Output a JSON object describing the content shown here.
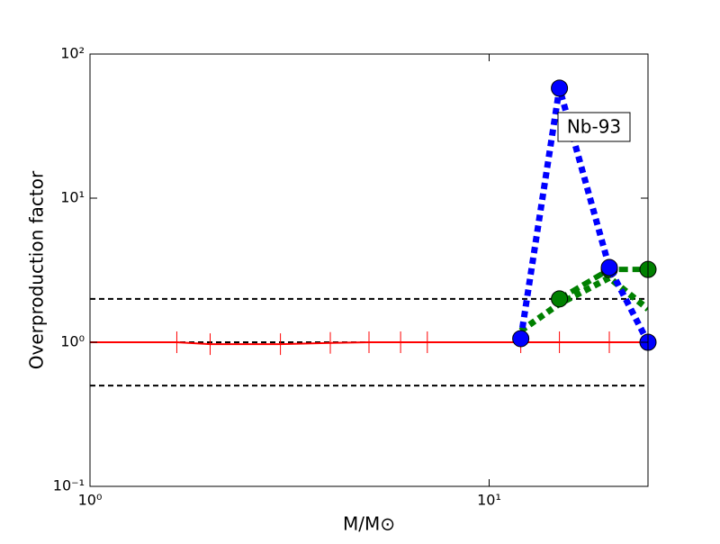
{
  "chart_data": {
    "type": "line",
    "xlabel": "M/M⊙",
    "ylabel": "Overproduction factor",
    "annotation": "Nb-93",
    "xscale": "log",
    "yscale": "log",
    "xlim": [
      1,
      25
    ],
    "ylim": [
      0.1,
      100
    ],
    "xticks": [
      {
        "value": 1,
        "label": "10⁰"
      },
      {
        "value": 10,
        "label": "10¹"
      }
    ],
    "yticks": [
      {
        "value": 0.1,
        "label": "10⁻¹"
      },
      {
        "value": 1,
        "label": "10⁰"
      },
      {
        "value": 10,
        "label": "10¹"
      },
      {
        "value": 100,
        "label": "10²"
      }
    ],
    "hlines": [
      0.5,
      1,
      2
    ],
    "series": [
      {
        "color": "#ff0000",
        "style": "solid",
        "marker": "vline",
        "x": [
          1,
          1.65,
          2,
          3,
          4,
          5,
          6,
          7,
          12,
          15,
          20,
          25
        ],
        "values": [
          1,
          1,
          0.97,
          0.97,
          0.99,
          1,
          1,
          1,
          1,
          1,
          1,
          1
        ]
      },
      {
        "color": "#008000",
        "style": "dotted",
        "marker": "none",
        "x": [
          12,
          15,
          20,
          25
        ],
        "values": [
          1.2,
          1.85,
          2.8,
          1.7
        ]
      },
      {
        "color": "#008000",
        "style": "dashed",
        "marker": "circle",
        "x": [
          12,
          15,
          20,
          25
        ],
        "values": [
          null,
          2.0,
          3.2,
          3.2
        ]
      },
      {
        "color": "#0000ff",
        "style": "dotted",
        "marker": "circle",
        "x": [
          12,
          15,
          20,
          25
        ],
        "values": [
          1.06,
          58,
          3.3,
          1.0
        ]
      }
    ]
  }
}
